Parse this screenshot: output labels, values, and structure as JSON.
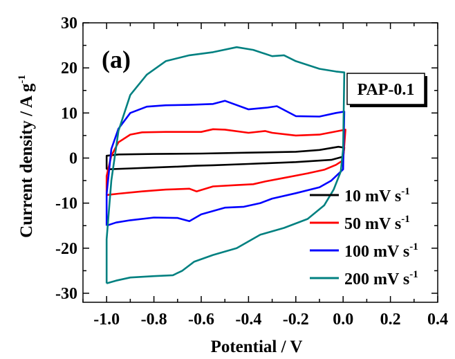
{
  "chart_data": {
    "type": "line",
    "title": "",
    "panel_label": "(a)",
    "sample_label": "PAP-0.1",
    "xlabel": "Potential / V",
    "ylabel": "Current density / A g",
    "ylabel_sup": "-1",
    "xlim": [
      -1.1,
      0.4
    ],
    "ylim": [
      -32,
      30
    ],
    "x_ticks": [
      -1.0,
      -0.8,
      -0.6,
      -0.4,
      -0.2,
      0.0,
      0.2,
      0.4
    ],
    "x_tick_labels": [
      "-1.0",
      "-0.8",
      "-0.6",
      "-0.4",
      "-0.2",
      "0.0",
      "0.2",
      "0.4"
    ],
    "y_ticks": [
      -30,
      -20,
      -10,
      0,
      10,
      20,
      30
    ],
    "y_tick_labels": [
      "-30",
      "-20",
      "-10",
      "0",
      "10",
      "20",
      "30"
    ],
    "grid": false,
    "legend_position": "bottom-right",
    "series": [
      {
        "name": "10 mV s",
        "name_sup": "-1",
        "color": "#000000",
        "points": [
          [
            -1.0,
            -2.5
          ],
          [
            -0.9,
            -2.3
          ],
          [
            -0.8,
            -2.1
          ],
          [
            -0.7,
            -1.9
          ],
          [
            -0.62,
            -1.7
          ],
          [
            -0.55,
            -1.6
          ],
          [
            -0.4,
            -1.3
          ],
          [
            -0.2,
            -0.9
          ],
          [
            -0.05,
            -0.4
          ],
          [
            0.0,
            0.3
          ],
          [
            0.005,
            2.3
          ],
          [
            -0.02,
            2.5
          ],
          [
            -0.1,
            1.8
          ],
          [
            -0.2,
            1.4
          ],
          [
            -0.4,
            1.2
          ],
          [
            -0.6,
            1.0
          ],
          [
            -0.8,
            0.9
          ],
          [
            -0.95,
            0.8
          ],
          [
            -1.0,
            0.5
          ],
          [
            -1.0,
            -2.5
          ]
        ]
      },
      {
        "name": "50 mV s",
        "name_sup": "-1",
        "color": "#ff0000",
        "points": [
          [
            -1.0,
            -8.2
          ],
          [
            -0.95,
            -7.9
          ],
          [
            -0.85,
            -7.4
          ],
          [
            -0.75,
            -7.0
          ],
          [
            -0.65,
            -6.8
          ],
          [
            -0.62,
            -7.4
          ],
          [
            -0.55,
            -6.3
          ],
          [
            -0.45,
            -6.0
          ],
          [
            -0.38,
            -5.8
          ],
          [
            -0.33,
            -5.2
          ],
          [
            -0.25,
            -4.4
          ],
          [
            -0.15,
            -3.4
          ],
          [
            -0.08,
            -2.6
          ],
          [
            -0.03,
            -1.5
          ],
          [
            0.0,
            -0.5
          ],
          [
            0.01,
            6.3
          ],
          [
            -0.02,
            6.0
          ],
          [
            -0.1,
            5.2
          ],
          [
            -0.2,
            5.0
          ],
          [
            -0.3,
            5.6
          ],
          [
            -0.33,
            6.0
          ],
          [
            -0.4,
            5.6
          ],
          [
            -0.5,
            6.3
          ],
          [
            -0.55,
            6.4
          ],
          [
            -0.6,
            5.8
          ],
          [
            -0.75,
            5.8
          ],
          [
            -0.85,
            5.7
          ],
          [
            -0.9,
            5.2
          ],
          [
            -0.95,
            3.5
          ],
          [
            -0.98,
            0.5
          ],
          [
            -1.0,
            -4.0
          ],
          [
            -1.0,
            -8.2
          ]
        ]
      },
      {
        "name": "100 mV s",
        "name_sup": "-1",
        "color": "#0000ff",
        "points": [
          [
            -1.0,
            -15.0
          ],
          [
            -0.96,
            -14.3
          ],
          [
            -0.9,
            -13.8
          ],
          [
            -0.8,
            -13.2
          ],
          [
            -0.7,
            -13.3
          ],
          [
            -0.65,
            -14.0
          ],
          [
            -0.6,
            -12.5
          ],
          [
            -0.5,
            -11.0
          ],
          [
            -0.42,
            -10.8
          ],
          [
            -0.35,
            -10.0
          ],
          [
            -0.3,
            -9.0
          ],
          [
            -0.2,
            -7.8
          ],
          [
            -0.1,
            -6.5
          ],
          [
            -0.05,
            -5.0
          ],
          [
            0.0,
            -2.5
          ],
          [
            0.005,
            10.3
          ],
          [
            -0.03,
            10.0
          ],
          [
            -0.1,
            9.2
          ],
          [
            -0.2,
            9.3
          ],
          [
            -0.28,
            11.5
          ],
          [
            -0.32,
            11.2
          ],
          [
            -0.4,
            10.8
          ],
          [
            -0.5,
            12.7
          ],
          [
            -0.55,
            12.0
          ],
          [
            -0.65,
            11.8
          ],
          [
            -0.75,
            11.7
          ],
          [
            -0.83,
            11.4
          ],
          [
            -0.9,
            10.0
          ],
          [
            -0.95,
            6.5
          ],
          [
            -0.98,
            2.0
          ],
          [
            -1.0,
            -8.0
          ],
          [
            -1.0,
            -15.0
          ]
        ]
      },
      {
        "name": "200 mV s",
        "name_sup": "-1",
        "color": "#008080",
        "points": [
          [
            -1.0,
            -27.8
          ],
          [
            -0.96,
            -27.2
          ],
          [
            -0.9,
            -26.5
          ],
          [
            -0.8,
            -26.2
          ],
          [
            -0.72,
            -26.0
          ],
          [
            -0.68,
            -25.0
          ],
          [
            -0.63,
            -23.0
          ],
          [
            -0.55,
            -21.5
          ],
          [
            -0.45,
            -20.0
          ],
          [
            -0.35,
            -17.0
          ],
          [
            -0.25,
            -15.5
          ],
          [
            -0.15,
            -13.5
          ],
          [
            -0.08,
            -10.5
          ],
          [
            -0.04,
            -7.0
          ],
          [
            -0.01,
            -3.0
          ],
          [
            0.0,
            2.0
          ],
          [
            0.005,
            19.0
          ],
          [
            -0.03,
            19.2
          ],
          [
            -0.1,
            19.8
          ],
          [
            -0.2,
            21.5
          ],
          [
            -0.25,
            22.8
          ],
          [
            -0.3,
            22.6
          ],
          [
            -0.38,
            24.0
          ],
          [
            -0.45,
            24.6
          ],
          [
            -0.55,
            23.5
          ],
          [
            -0.65,
            22.8
          ],
          [
            -0.75,
            21.5
          ],
          [
            -0.83,
            18.5
          ],
          [
            -0.9,
            14.0
          ],
          [
            -0.95,
            6.0
          ],
          [
            -0.98,
            -5.0
          ],
          [
            -1.0,
            -18.0
          ],
          [
            -1.0,
            -27.8
          ]
        ]
      }
    ]
  }
}
